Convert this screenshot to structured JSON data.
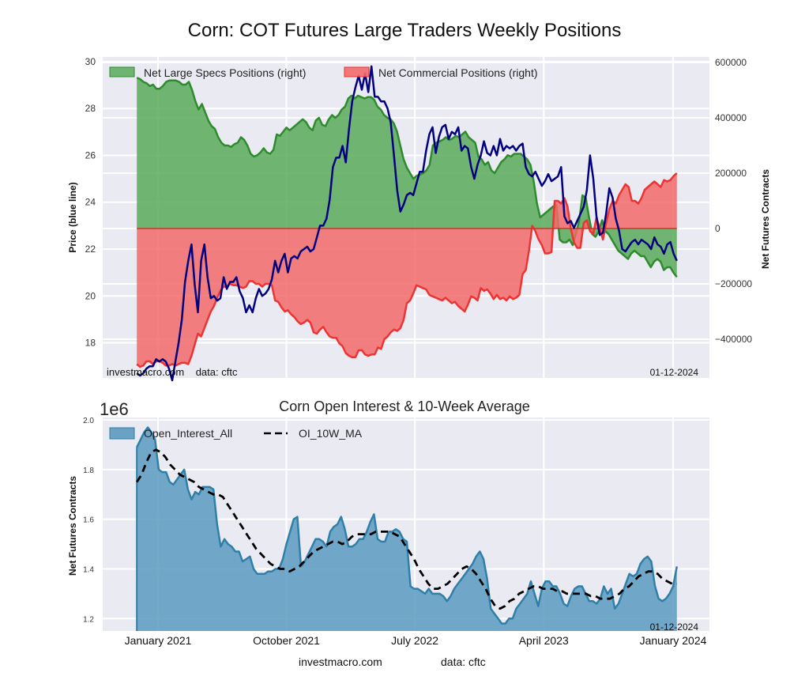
{
  "figure": {
    "title": "Corn: COT Futures Large Traders Weekly Positions",
    "footer_site": "investmacro.com",
    "footer_source": "data: cftc"
  },
  "chart_data": [
    {
      "type": "area",
      "title": "Corn: COT Futures Large Traders Weekly Positions",
      "ylabel_left": "Price (blue line)",
      "ylabel_right": "Net Futures Contracts",
      "ylim_left": [
        16.5,
        30.2
      ],
      "ylim_right": [
        -540000,
        620000
      ],
      "yticks_left": [
        "18",
        "20",
        "22",
        "24",
        "26",
        "28",
        "30"
      ],
      "yticks_right": [
        "−400000",
        "−200000",
        "0",
        "200000",
        "400000",
        "600000"
      ],
      "yticks_left_values": [
        18,
        20,
        22,
        24,
        26,
        28,
        30
      ],
      "yticks_right_values": [
        -400000,
        -200000,
        0,
        200000,
        400000,
        600000
      ],
      "grid": true,
      "legend_placement": "top-left",
      "annotation_left": "investmacro.com    data: cftc",
      "annotation_right": "01-12-2024",
      "x_start": "2020-11-17",
      "x_end": "2024-01-09",
      "x_step_weeks": 1,
      "series": [
        {
          "name": "Net Large Specs Positions (right)",
          "kind": "area",
          "color": "#2e8b2e",
          "fill": "#5aaa5a",
          "values": [
            545000,
            540000,
            530000,
            525000,
            515000,
            520000,
            505000,
            505000,
            515000,
            530000,
            535000,
            535000,
            535000,
            530000,
            520000,
            520000,
            530000,
            500000,
            460000,
            430000,
            450000,
            420000,
            390000,
            370000,
            360000,
            330000,
            310000,
            300000,
            300000,
            295000,
            305000,
            310000,
            330000,
            320000,
            300000,
            270000,
            260000,
            265000,
            275000,
            290000,
            275000,
            270000,
            285000,
            340000,
            335000,
            350000,
            365000,
            355000,
            365000,
            375000,
            385000,
            395000,
            385000,
            365000,
            355000,
            390000,
            400000,
            375000,
            370000,
            395000,
            410000,
            400000,
            410000,
            430000,
            440000,
            470000,
            480000,
            470000,
            480000,
            475000,
            470000,
            475000,
            475000,
            465000,
            440000,
            430000,
            410000,
            400000,
            395000,
            380000,
            350000,
            300000,
            250000,
            220000,
            200000,
            180000,
            190000,
            195000,
            200000,
            210000,
            230000,
            300000,
            310000,
            315000,
            320000,
            330000,
            320000,
            325000,
            335000,
            330000,
            340000,
            350000,
            330000,
            320000,
            310000,
            260000,
            250000,
            230000,
            240000,
            210000,
            200000,
            220000,
            240000,
            250000,
            265000,
            260000,
            270000,
            270000,
            270000,
            260000,
            250000,
            230000,
            170000,
            90000,
            40000,
            50000,
            60000,
            70000,
            80000,
            85000,
            -40000,
            -50000,
            -50000,
            -40000,
            -60000,
            -20000,
            30000,
            120000,
            110000,
            40000,
            -20000,
            -30000,
            -10000,
            30000,
            -10000,
            -20000,
            -40000,
            -60000,
            -80000,
            -90000,
            -100000,
            -110000,
            -90000,
            -80000,
            -90000,
            -100000,
            -100000,
            -120000,
            -140000,
            -120000,
            -110000,
            -120000,
            -150000,
            -140000,
            -140000,
            -160000,
            -175000
          ]
        },
        {
          "name": "Net Commercial Positions (right)",
          "kind": "area",
          "color": "#ee3333",
          "fill": "#f26a6a",
          "values": [
            -490000,
            -500000,
            -495000,
            -480000,
            -480000,
            -490000,
            -480000,
            -480000,
            -485000,
            -495000,
            -495000,
            -490000,
            -495000,
            -490000,
            -485000,
            -485000,
            -490000,
            -460000,
            -420000,
            -380000,
            -390000,
            -360000,
            -330000,
            -300000,
            -280000,
            -250000,
            -225000,
            -210000,
            -210000,
            -200000,
            -205000,
            -205000,
            -210000,
            -215000,
            -210000,
            -190000,
            -190000,
            -200000,
            -200000,
            -210000,
            -200000,
            -200000,
            -205000,
            -260000,
            -265000,
            -285000,
            -300000,
            -295000,
            -310000,
            -320000,
            -335000,
            -345000,
            -340000,
            -330000,
            -340000,
            -375000,
            -380000,
            -365000,
            -355000,
            -375000,
            -390000,
            -395000,
            -395000,
            -415000,
            -425000,
            -450000,
            -460000,
            -465000,
            -465000,
            -440000,
            -440000,
            -455000,
            -460000,
            -455000,
            -455000,
            -430000,
            -435000,
            -400000,
            -390000,
            -375000,
            -365000,
            -370000,
            -360000,
            -330000,
            -270000,
            -260000,
            -235000,
            -205000,
            -210000,
            -215000,
            -220000,
            -240000,
            -245000,
            -250000,
            -255000,
            -260000,
            -250000,
            -260000,
            -270000,
            -265000,
            -280000,
            -290000,
            -300000,
            -275000,
            -245000,
            -250000,
            -260000,
            -215000,
            -225000,
            -220000,
            -235000,
            -255000,
            -240000,
            -255000,
            -250000,
            -260000,
            -245000,
            -255000,
            -250000,
            -240000,
            -165000,
            -150000,
            -80000,
            10000,
            -10000,
            -40000,
            -60000,
            -90000,
            -90000,
            -85000,
            100000,
            100000,
            90000,
            110000,
            80000,
            0,
            -50000,
            -70000,
            -70000,
            20000,
            30000,
            -10000,
            -20000,
            40000,
            0,
            -40000,
            20000,
            70000,
            100000,
            90000,
            120000,
            140000,
            160000,
            150000,
            100000,
            100000,
            90000,
            110000,
            140000,
            150000,
            160000,
            170000,
            160000,
            150000,
            175000,
            170000,
            175000,
            190000,
            200000
          ]
        },
        {
          "name": "Price (blue line)",
          "kind": "line",
          "axis": "left",
          "color": "#000080",
          "values": [
            16.7,
            16.6,
            16.7,
            16.9,
            17.0,
            17.0,
            17.3,
            17.2,
            17.3,
            17.2,
            16.9,
            16.4,
            17.2,
            18.0,
            19.0,
            20.6,
            21.5,
            22.2,
            20.5,
            19.3,
            21.5,
            22.2,
            20.8,
            19.9,
            20.0,
            19.8,
            19.9,
            20.8,
            20.3,
            20.6,
            20.6,
            20.8,
            20.2,
            19.9,
            19.3,
            19.6,
            19.3,
            19.9,
            20.3,
            20.0,
            20.1,
            20.3,
            20.7,
            21.5,
            21.0,
            21.5,
            21.8,
            21.0,
            21.6,
            21.7,
            21.6,
            21.9,
            22.0,
            22.1,
            21.9,
            22.0,
            22.5,
            23.0,
            23.0,
            23.3,
            24.1,
            25.5,
            25.9,
            25.9,
            26.4,
            25.7,
            27.1,
            28.3,
            28.9,
            29.4,
            28.8,
            29.5,
            28.7,
            29.8,
            28.5,
            28.5,
            28.3,
            28.3,
            28.0,
            27.4,
            26.0,
            24.5,
            23.6,
            23.9,
            24.3,
            24.4,
            24.3,
            24.8,
            25.3,
            25.3,
            26.2,
            26.9,
            27.2,
            26.1,
            26.8,
            27.2,
            27.3,
            26.7,
            27.0,
            26.9,
            27.2,
            26.2,
            26.4,
            26.3,
            25.5,
            25.0,
            25.6,
            26.0,
            26.6,
            26.1,
            26.0,
            26.4,
            26.0,
            26.7,
            26.2,
            26.4,
            26.3,
            26.4,
            26.2,
            26.4,
            26.5,
            25.5,
            25.2,
            25.1,
            25.3,
            25.0,
            24.7,
            24.9,
            25.2,
            24.9,
            25.0,
            25.1,
            25.5,
            23.4,
            23.1,
            23.2,
            22.9,
            23.2,
            23.5,
            23.8,
            24.5,
            26.0,
            25.0,
            23.4,
            22.6,
            22.7,
            23.5,
            24.6,
            24.2,
            23.3,
            22.8,
            22.0,
            21.9,
            22.1,
            22.3,
            22.4,
            22.2,
            22.4,
            22.3,
            22.2,
            22.0,
            22.5,
            22.2,
            22.1,
            21.8,
            22.2,
            22.3,
            21.8,
            21.5
          ]
        }
      ]
    },
    {
      "type": "area",
      "title": "Corn Open Interest & 10-Week Average",
      "ylabel": "Net Futures Contracts",
      "y_scale_label": "1e6",
      "ylim": [
        1.15,
        2.01
      ],
      "yticks": [
        "1.2",
        "1.4",
        "1.6",
        "1.8",
        "2.0"
      ],
      "ytick_values": [
        1.2,
        1.4,
        1.6,
        1.8,
        2.0
      ],
      "xticks": [
        "January 2021",
        "October 2021",
        "July 2022",
        "April 2023",
        "January 2024"
      ],
      "grid": true,
      "legend_placement": "top-left",
      "annotation_right": "01-12-2024",
      "series": [
        {
          "name": "Open_Interest_All",
          "kind": "area",
          "color": "#2f7fa8",
          "fill": "#5b9ac0",
          "values": [
            1.89,
            1.92,
            1.95,
            1.97,
            1.95,
            1.92,
            1.8,
            1.79,
            1.79,
            1.75,
            1.74,
            1.76,
            1.78,
            1.8,
            1.72,
            1.68,
            1.71,
            1.7,
            1.73,
            1.73,
            1.73,
            1.72,
            1.58,
            1.49,
            1.52,
            1.5,
            1.49,
            1.47,
            1.47,
            1.43,
            1.44,
            1.45,
            1.4,
            1.38,
            1.38,
            1.38,
            1.39,
            1.39,
            1.4,
            1.4,
            1.44,
            1.5,
            1.55,
            1.6,
            1.61,
            1.41,
            1.43,
            1.46,
            1.49,
            1.52,
            1.52,
            1.51,
            1.49,
            1.55,
            1.57,
            1.58,
            1.61,
            1.56,
            1.49,
            1.49,
            1.5,
            1.52,
            1.52,
            1.55,
            1.59,
            1.62,
            1.52,
            1.51,
            1.51,
            1.55,
            1.55,
            1.56,
            1.55,
            1.52,
            1.51,
            1.33,
            1.32,
            1.32,
            1.31,
            1.3,
            1.32,
            1.3,
            1.3,
            1.3,
            1.29,
            1.27,
            1.29,
            1.32,
            1.34,
            1.36,
            1.38,
            1.4,
            1.42,
            1.45,
            1.47,
            1.44,
            1.36,
            1.24,
            1.22,
            1.2,
            1.18,
            1.18,
            1.2,
            1.2,
            1.24,
            1.26,
            1.28,
            1.3,
            1.35,
            1.3,
            1.25,
            1.32,
            1.35,
            1.35,
            1.33,
            1.33,
            1.3,
            1.26,
            1.25,
            1.29,
            1.32,
            1.33,
            1.33,
            1.3,
            1.27,
            1.27,
            1.26,
            1.28,
            1.33,
            1.3,
            1.32,
            1.24,
            1.26,
            1.3,
            1.34,
            1.38,
            1.37,
            1.38,
            1.42,
            1.44,
            1.45,
            1.43,
            1.33,
            1.28,
            1.27,
            1.28,
            1.3,
            1.33,
            1.41
          ]
        },
        {
          "name": "OI_10W_MA",
          "kind": "line",
          "style": "dashed",
          "color": "#000000",
          "values": [
            1.75,
            1.78,
            1.83,
            1.87,
            1.88,
            1.87,
            1.85,
            1.82,
            1.8,
            1.78,
            1.77,
            1.76,
            1.75,
            1.73,
            1.72,
            1.71,
            1.7,
            1.7,
            1.69,
            1.66,
            1.63,
            1.6,
            1.57,
            1.54,
            1.51,
            1.48,
            1.46,
            1.44,
            1.42,
            1.41,
            1.4,
            1.4,
            1.39,
            1.4,
            1.41,
            1.43,
            1.45,
            1.47,
            1.48,
            1.49,
            1.5,
            1.51,
            1.51,
            1.5,
            1.51,
            1.53,
            1.54,
            1.54,
            1.54,
            1.54,
            1.55,
            1.55,
            1.55,
            1.55,
            1.54,
            1.53,
            1.5,
            1.47,
            1.44,
            1.4,
            1.37,
            1.34,
            1.32,
            1.32,
            1.33,
            1.34,
            1.36,
            1.38,
            1.4,
            1.41,
            1.4,
            1.38,
            1.35,
            1.32,
            1.28,
            1.25,
            1.24,
            1.25,
            1.27,
            1.28,
            1.3,
            1.31,
            1.32,
            1.33,
            1.33,
            1.32,
            1.32,
            1.32,
            1.31,
            1.31,
            1.3,
            1.3,
            1.3,
            1.3,
            1.3,
            1.29,
            1.29,
            1.28,
            1.28,
            1.28,
            1.29,
            1.3,
            1.32,
            1.33,
            1.35,
            1.37,
            1.38,
            1.39,
            1.39,
            1.38,
            1.36,
            1.35,
            1.34,
            1.34
          ]
        }
      ]
    }
  ],
  "x_axis": {
    "tick_labels": [
      "January 2021",
      "October 2021",
      "July 2022",
      "April 2023",
      "January 2024"
    ],
    "tick_dates": [
      "2021-01-01",
      "2021-10-01",
      "2022-07-01",
      "2023-04-01",
      "2024-01-01"
    ]
  }
}
